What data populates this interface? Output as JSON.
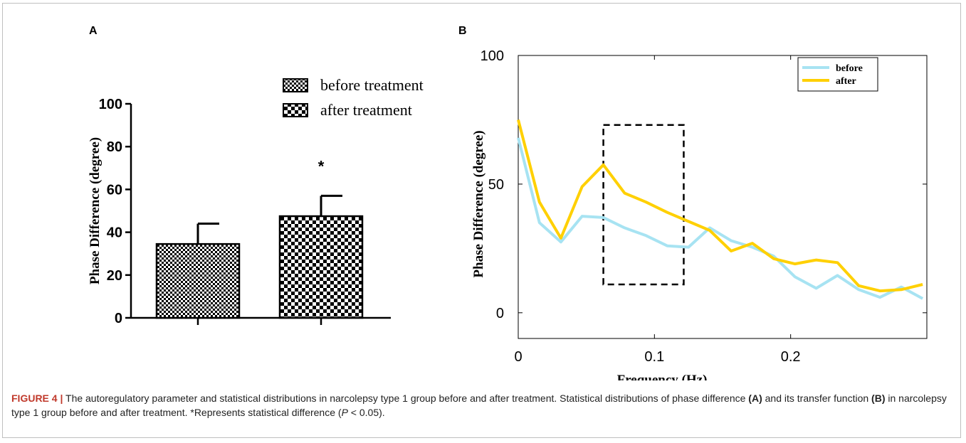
{
  "figure": {
    "caption_label": "FIGURE 4 |",
    "caption_text_1": " The autoregulatory parameter and statistical distributions in narcolepsy type 1 group before and after treatment. Statistical distributions of phase difference ",
    "caption_ref_a": "(A)",
    "caption_text_2": " and its transfer function ",
    "caption_ref_b": "(B)",
    "caption_text_3": " in narcolepsy type 1 group before and after treatment. *Represents statistical difference (",
    "caption_p": "P",
    "caption_text_4": " < 0.05)."
  },
  "chart_data": [
    {
      "panel": "A",
      "type": "bar",
      "ylabel": "Phase Difference (degree)",
      "ylim": [
        0,
        100
      ],
      "yticks": [
        "0",
        "20",
        "40",
        "60",
        "80",
        "100"
      ],
      "categories": [
        "before treatment",
        "after treatment"
      ],
      "values": [
        34.5,
        47.5
      ],
      "errors": [
        9.5,
        9.5
      ],
      "patterns": [
        "fine-checker",
        "coarse-checker"
      ],
      "significance": [
        "",
        "*"
      ],
      "legend": [
        "before treatment",
        "after treatment"
      ],
      "legend_position": "top-right"
    },
    {
      "panel": "B",
      "type": "line",
      "xlabel": "Frequency (Hz)",
      "ylabel": "Phase Difference (degree)",
      "xlim": [
        0,
        0.3
      ],
      "ylim": [
        -10,
        100
      ],
      "xticks": [
        "0",
        "0.1",
        "0.2"
      ],
      "yticks": [
        "0",
        "50",
        "100"
      ],
      "legend_position": "top-right",
      "series": [
        {
          "name": "before",
          "color": "#a7e3f2",
          "x": [
            0,
            0.0156,
            0.0313,
            0.0469,
            0.0625,
            0.0781,
            0.0938,
            0.1094,
            0.125,
            0.1406,
            0.1563,
            0.1719,
            0.1875,
            0.2031,
            0.2188,
            0.2344,
            0.25,
            0.2656,
            0.2813,
            0.2969
          ],
          "y": [
            68,
            35,
            27.5,
            37.5,
            37,
            33,
            30,
            26,
            25.5,
            33,
            28,
            25.5,
            22,
            14,
            9.5,
            14.5,
            9,
            6,
            10,
            5.5
          ]
        },
        {
          "name": "after",
          "color": "#ffd000",
          "x": [
            0,
            0.0156,
            0.0313,
            0.0469,
            0.0625,
            0.0781,
            0.0938,
            0.1094,
            0.125,
            0.1406,
            0.1563,
            0.1719,
            0.1875,
            0.2031,
            0.2188,
            0.2344,
            0.25,
            0.2656,
            0.2813,
            0.2969
          ],
          "y": [
            75,
            43,
            29,
            49,
            57.5,
            46.5,
            43,
            39,
            35.5,
            32,
            24,
            27,
            21,
            19,
            20.5,
            19.5,
            10.5,
            8.5,
            9,
            11
          ]
        }
      ],
      "annotation": {
        "type": "dashed-rect",
        "x": [
          0.0625,
          0.1215
        ],
        "y": [
          11,
          73
        ]
      }
    }
  ]
}
